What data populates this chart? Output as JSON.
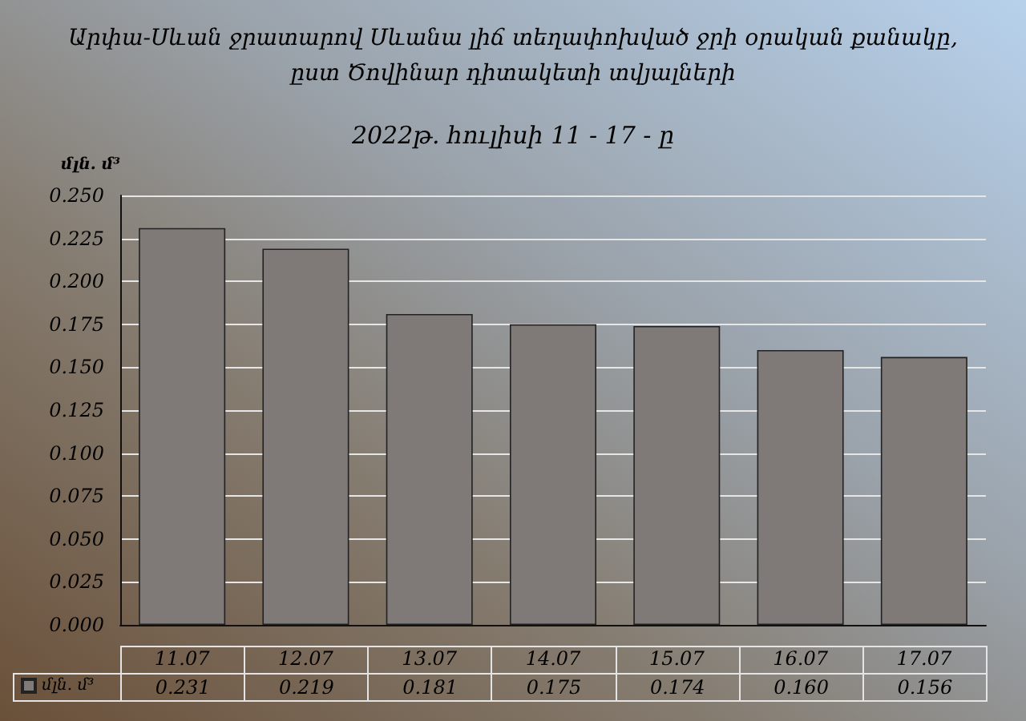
{
  "chart_data": {
    "type": "bar",
    "title": "Արփա-Սևան ջրատարով Սևանա լիճ տեղափոխված ջրի օրական քանակը,\nըստ Ծովինար դիտակետի տվյալների",
    "subtitle": "2022թ. հուլիսի 11 - 17 - ը",
    "ylabel": "մլն. մ³",
    "categories": [
      "11.07",
      "12.07",
      "13.07",
      "14.07",
      "15.07",
      "16.07",
      "17.07"
    ],
    "series": [
      {
        "name": "մլն. մ³",
        "color": "#7f7a78",
        "values": [
          0.231,
          0.219,
          0.181,
          0.175,
          0.174,
          0.16,
          0.156
        ],
        "value_labels": [
          "0.231",
          "0.219",
          "0.181",
          "0.175",
          "0.174",
          "0.160",
          "0.156"
        ]
      }
    ],
    "ylim": [
      0,
      0.25
    ],
    "yticks": [
      {
        "value": 0,
        "label": "0.000"
      },
      {
        "value": 0.025,
        "label": "0.025"
      },
      {
        "value": 0.05,
        "label": "0.050"
      },
      {
        "value": 0.075,
        "label": "0.075"
      },
      {
        "value": 0.1,
        "label": "0.100"
      },
      {
        "value": 0.125,
        "label": "0.125"
      },
      {
        "value": 0.15,
        "label": "0.150"
      },
      {
        "value": 0.175,
        "label": "0.175"
      },
      {
        "value": 0.2,
        "label": "0.200"
      },
      {
        "value": 0.225,
        "label": "0.225"
      },
      {
        "value": 0.25,
        "label": "0.250"
      }
    ],
    "grid": "y",
    "legend": "bottom"
  }
}
